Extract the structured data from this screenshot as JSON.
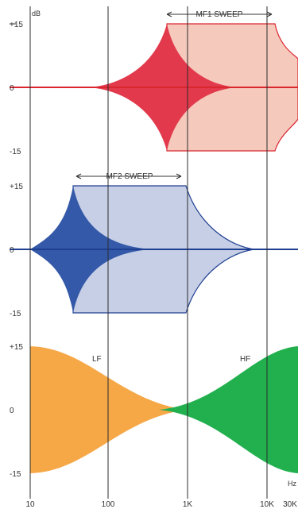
{
  "axes": {
    "y_unit": "dB",
    "x_unit": "Hz",
    "y_ticks": [
      "+15",
      "0",
      "-15"
    ],
    "x_ticks": [
      "10",
      "100",
      "1K",
      "10K",
      "30K"
    ]
  },
  "panels": [
    {
      "id": "mf1",
      "label": "MF1 SWEEP",
      "colors": {
        "main": "#e23a4c",
        "band": "#f6c9bd",
        "outline": "#d9262f"
      }
    },
    {
      "id": "mf2",
      "label": "MF2 SWEEP",
      "colors": {
        "main": "#3459a8",
        "band": "#c6cfe6",
        "outline": "#1f3f91"
      }
    },
    {
      "id": "shelf",
      "lf_label": "LF",
      "hf_label": "HF",
      "colors": {
        "lf": "#f6a847",
        "hf": "#22b04f"
      }
    }
  ],
  "colors": {
    "grid": "#2b2b2b",
    "baseline_red": "#d9262f",
    "baseline_blue": "#1f3f91"
  }
}
